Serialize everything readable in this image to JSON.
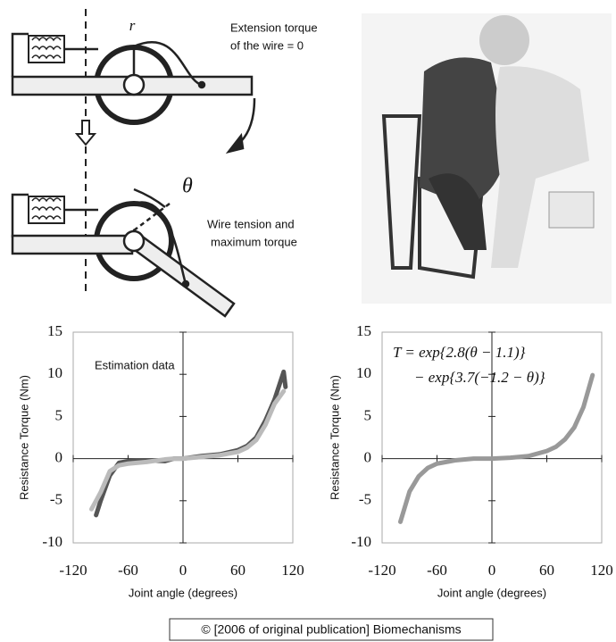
{
  "diagram": {
    "r": "r",
    "top_note": [
      "Extension torque",
      "of the wire = 0"
    ],
    "theta": "θ",
    "bottom_note": [
      "Wire tension and",
      "maximum torque"
    ]
  },
  "chart_data": [
    {
      "type": "line",
      "xlabel": "Joint angle (degrees)",
      "ylabel": "Resistance Torque (Nm)",
      "annotations": [
        "Estimation data"
      ],
      "x": [
        -100,
        -95,
        -90,
        -80,
        -70,
        -60,
        -40,
        -20,
        -10,
        0,
        20,
        40,
        60,
        70,
        80,
        90,
        100,
        110,
        112
      ],
      "series": [
        {
          "color": "#555555",
          "values": [
            null,
            -6.7,
            -5,
            -2,
            -0.5,
            -0.3,
            -0.2,
            -0.3,
            0,
            0,
            0.3,
            0.5,
            1,
            1.5,
            2.5,
            4.5,
            7,
            10.3,
            8.5
          ]
        },
        {
          "color": "#bbbbbb",
          "values": [
            -6,
            -5,
            -4,
            -1.5,
            -0.8,
            -0.6,
            -0.4,
            -0.1,
            0,
            0,
            0.2,
            0.4,
            0.8,
            1.3,
            2.2,
            4,
            6.5,
            8,
            null
          ]
        }
      ],
      "xlim": [
        -120,
        120
      ],
      "ylim": [
        -10,
        15
      ],
      "xticks": [
        -120,
        -60,
        0,
        60,
        120
      ],
      "yticks": [
        -10,
        -5,
        0,
        5,
        10,
        15
      ]
    },
    {
      "type": "line",
      "xlabel": "Joint angle (degrees)",
      "ylabel": "Resistance Torque (Nm)",
      "annotations": [
        "T = exp{2.8(θ − 1.1)}",
        "− exp{3.7(−1.2 − θ)}"
      ],
      "x": [
        -100,
        -90,
        -80,
        -70,
        -60,
        -40,
        -20,
        0,
        20,
        40,
        60,
        70,
        80,
        90,
        100,
        110
      ],
      "series": [
        {
          "color": "#999999",
          "values": [
            -7.5,
            -3.9,
            -2.1,
            -1.1,
            -0.6,
            -0.2,
            0,
            0,
            0.1,
            0.3,
            0.9,
            1.4,
            2.3,
            3.7,
            6.1,
            9.9
          ]
        }
      ],
      "xlim": [
        -120,
        120
      ],
      "ylim": [
        -10,
        15
      ],
      "xticks": [
        -120,
        -60,
        0,
        60,
        120
      ],
      "yticks": [
        -10,
        -5,
        0,
        5,
        10,
        15
      ]
    }
  ],
  "caption": "© [2006 of original publication] Biomechanisms"
}
